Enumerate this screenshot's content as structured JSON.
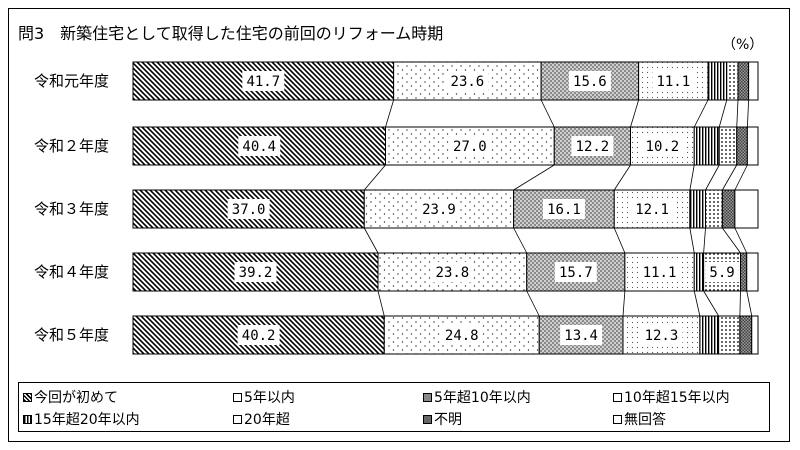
{
  "title": "問3　新築住宅として取得した住宅の前回のリフォーム時期",
  "unit": "（%）",
  "chart_data": {
    "type": "bar",
    "stacked": "horizontal-100-percent",
    "categories": [
      "令和元年度",
      "令和２年度",
      "令和３年度",
      "令和４年度",
      "令和５年度"
    ],
    "series": [
      {
        "name": "今回が初めて",
        "values": [
          41.7,
          40.4,
          37.0,
          39.2,
          40.2
        ],
        "labels": [
          "41.7",
          "40.4",
          "37.0",
          "39.2",
          "40.2"
        ]
      },
      {
        "name": "5年以内",
        "values": [
          23.6,
          27.0,
          23.9,
          23.8,
          24.8
        ],
        "labels": [
          "23.6",
          "27.0",
          "23.9",
          "23.8",
          "24.8"
        ]
      },
      {
        "name": "5年超10年以内",
        "values": [
          15.6,
          12.2,
          16.1,
          15.7,
          13.4
        ],
        "labels": [
          "15.6",
          "12.2",
          "16.1",
          "15.7",
          "13.4"
        ]
      },
      {
        "name": "10年超15年以内",
        "values": [
          11.1,
          10.2,
          12.1,
          11.1,
          12.3
        ],
        "labels": [
          "11.1",
          "10.2",
          "12.1",
          "11.1",
          "12.3"
        ]
      },
      {
        "name": "15年超20年以内",
        "values": [
          3.0,
          4.0,
          2.5,
          1.5,
          3.0
        ],
        "labels": [
          "",
          "",
          "",
          "",
          ""
        ]
      },
      {
        "name": "20年超",
        "values": [
          1.8,
          2.8,
          2.7,
          5.9,
          3.4
        ],
        "labels": [
          "",
          "",
          "",
          "5.9",
          ""
        ]
      },
      {
        "name": "不明",
        "values": [
          1.7,
          1.7,
          2.0,
          1.0,
          1.9
        ],
        "labels": [
          "",
          "",
          "",
          "",
          ""
        ]
      },
      {
        "name": "無回答",
        "values": [
          1.5,
          1.7,
          3.7,
          1.8,
          1.0
        ],
        "labels": [
          "",
          "",
          "",
          "",
          ""
        ]
      }
    ],
    "xlim": [
      0,
      100
    ],
    "legend_position": "bottom"
  }
}
